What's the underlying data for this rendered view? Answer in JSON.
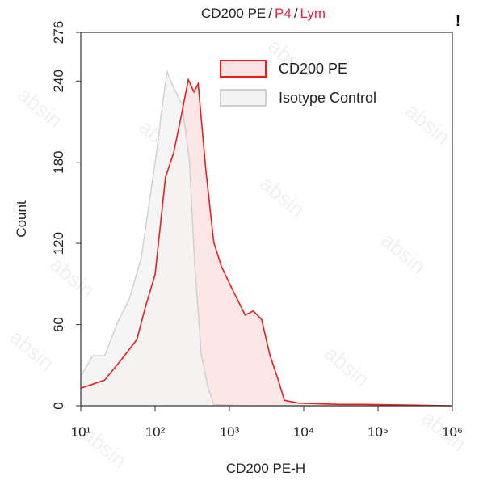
{
  "chart_data": {
    "type": "histogram",
    "title": [
      {
        "text": "CD200 PE",
        "color": "#222222"
      },
      {
        "text": "/",
        "color": "#222222"
      },
      {
        "text": "P4",
        "color": "#e8203a"
      },
      {
        "text": "/",
        "color": "#222222"
      },
      {
        "text": "Lym",
        "color": "#e8203a"
      }
    ],
    "alert_icon": "!",
    "watermark": "absin",
    "x_label": "CD200 PE-H",
    "y_label": "Count",
    "x_scale": "log",
    "xlim": [
      10,
      1000000
    ],
    "xticks": [
      {
        "value": 10,
        "label": "10¹"
      },
      {
        "value": 100,
        "label": "10²"
      },
      {
        "value": 1000,
        "label": "10³"
      },
      {
        "value": 10000,
        "label": "10⁴"
      },
      {
        "value": 100000,
        "label": "10⁵"
      },
      {
        "value": 1000000,
        "label": "10⁶"
      }
    ],
    "ylim": [
      0,
      276
    ],
    "yticks": [
      0,
      60,
      120,
      180,
      240,
      276
    ],
    "legend": "upper center",
    "series": [
      {
        "name": "CD200 PE",
        "color": "#ee1c1c",
        "fill": "#fbe3e3",
        "x": [
          10,
          21,
          35,
          57,
          74,
          100,
          138,
          178,
          230,
          280,
          333,
          380,
          480,
          615,
          780,
          1120,
          1630,
          2100,
          2700,
          3530,
          4550,
          5500,
          8500,
          30000,
          63000,
          1000000
        ],
        "values": [
          13,
          19,
          34,
          49,
          73,
          97,
          169,
          187,
          217,
          241,
          232,
          238,
          175,
          121,
          103,
          85,
          67,
          70,
          64,
          37,
          19,
          4,
          2,
          1,
          1,
          0
        ]
      },
      {
        "name": "Isotype Control",
        "color": "#cfcfcf",
        "fill": "#f3f3f3",
        "x": [
          10,
          14.5,
          21,
          31,
          45,
          65,
          84,
          108,
          122,
          145,
          178,
          230,
          290,
          343,
          420,
          520,
          615,
          1470,
          1000000
        ],
        "values": [
          22,
          37,
          37,
          61,
          79,
          109,
          151,
          193,
          217,
          247,
          235,
          223,
          181,
          103,
          37,
          13,
          1,
          0,
          0
        ]
      }
    ]
  }
}
